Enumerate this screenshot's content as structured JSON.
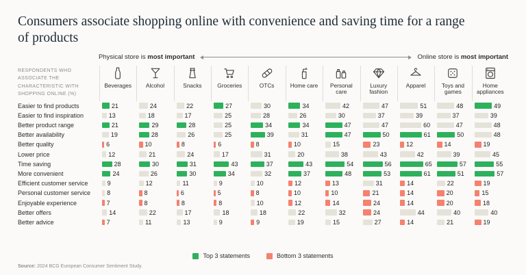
{
  "title": "Consumers associate shopping online with convenience and saving time for a range of products",
  "axis": {
    "physical_prefix": "Physical store is",
    "physical_bold": "most important",
    "online_prefix": "Online store is",
    "online_bold": "most important"
  },
  "respondents_note": "RESPONDENTS WHO ASSOCIATE THE CHARACTERISTIC WITH SHOPPING ONLINE (%)",
  "legend": [
    {
      "label": "Top 3 statements",
      "color": "#2EB15C"
    },
    {
      "label": "Bottom 3 statements",
      "color": "#F5816E"
    }
  ],
  "colors": {
    "top": "#2EB15C",
    "bottom": "#F5816E",
    "neutral": "#E5E2D9"
  },
  "source_label": "Source:",
  "source_text": "2024 BCG European Consumer Sentiment Study.",
  "chart_data": {
    "type": "table",
    "title": "Consumers associate shopping online with convenience and saving time for a range of products",
    "unit": "%",
    "highlight_rule": "Per product category column: top 3 statement values are green (Top 3 statements), bottom 3 values are salmon (Bottom 3 statements), ties at the boundary included; all other cells neutral beige. Bar length is proportional to value.",
    "categories": [
      {
        "label": "Beverages",
        "icon": "bottle-icon"
      },
      {
        "label": "Alcohol",
        "icon": "cocktail-icon"
      },
      {
        "label": "Snacks",
        "icon": "snack-bag-icon"
      },
      {
        "label": "Groceries",
        "icon": "shopping-cart-icon"
      },
      {
        "label": "OTCs",
        "icon": "bandage-icon"
      },
      {
        "label": "Home care",
        "icon": "spray-bottle-icon"
      },
      {
        "label": "Personal care",
        "icon": "toiletries-icon"
      },
      {
        "label": "Luxury fashion",
        "icon": "diamond-icon"
      },
      {
        "label": "Apparel",
        "icon": "hanger-icon"
      },
      {
        "label": "Toys and games",
        "icon": "dice-icon"
      },
      {
        "label": "Home appliances",
        "icon": "washing-machine-icon"
      }
    ],
    "rows": [
      {
        "label": "Easier to find products",
        "values": [
          21,
          24,
          22,
          27,
          30,
          34,
          42,
          47,
          51,
          48,
          49
        ]
      },
      {
        "label": "Easier to find inspiration",
        "values": [
          13,
          18,
          17,
          25,
          28,
          26,
          30,
          37,
          39,
          37,
          39
        ]
      },
      {
        "label": "Better product range",
        "values": [
          21,
          29,
          28,
          25,
          34,
          34,
          47,
          47,
          60,
          47,
          48
        ]
      },
      {
        "label": "Better availability",
        "values": [
          19,
          28,
          26,
          25,
          39,
          31,
          47,
          50,
          61,
          50,
          48
        ]
      },
      {
        "label": "Better quality",
        "values": [
          6,
          10,
          8,
          6,
          8,
          10,
          15,
          23,
          12,
          14,
          19
        ]
      },
      {
        "label": "Lower price",
        "values": [
          12,
          21,
          24,
          17,
          31,
          20,
          38,
          43,
          42,
          39,
          45
        ]
      },
      {
        "label": "Time saving",
        "values": [
          28,
          30,
          31,
          43,
          37,
          43,
          54,
          56,
          65,
          57,
          55
        ]
      },
      {
        "label": "More convenient",
        "values": [
          24,
          26,
          30,
          34,
          32,
          37,
          48,
          53,
          61,
          51,
          57
        ]
      },
      {
        "label": "Efficient customer service",
        "values": [
          9,
          12,
          11,
          9,
          10,
          12,
          13,
          31,
          14,
          22,
          19
        ]
      },
      {
        "label": "Personal customer service",
        "values": [
          8,
          8,
          6,
          5,
          8,
          10,
          10,
          21,
          14,
          20,
          15
        ]
      },
      {
        "label": "Enjoyable experience",
        "values": [
          7,
          8,
          8,
          8,
          10,
          12,
          14,
          24,
          14,
          20,
          18
        ]
      },
      {
        "label": "Better offers",
        "values": [
          14,
          22,
          17,
          18,
          18,
          22,
          32,
          24,
          44,
          40,
          40
        ]
      },
      {
        "label": "Better advice",
        "values": [
          7,
          11,
          13,
          9,
          9,
          19,
          15,
          27,
          14,
          21,
          19
        ]
      }
    ]
  }
}
